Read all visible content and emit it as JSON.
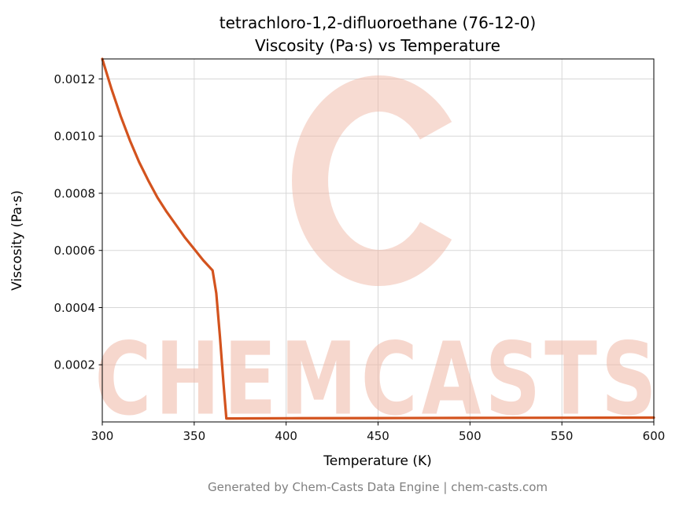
{
  "figure": {
    "background": "#ffffff",
    "footer": "Generated by Chem-Casts Data Engine | chem-casts.com"
  },
  "watermark": {
    "logo": "chemcasts-c-swirl-logo",
    "text": "CHEMCASTS",
    "color": "#f0b7a6"
  },
  "chart_data": {
    "type": "line",
    "title": "tetrachloro-1,2-difluoroethane (76-12-0) Viscosity (Pa·s) vs Temperature",
    "title_lines": [
      "tetrachloro-1,2-difluoroethane (76-12-0)",
      "Viscosity (Pa·s) vs Temperature"
    ],
    "xlabel": "Temperature (K)",
    "ylabel": "Viscosity (Pa·s)",
    "xlim": [
      300,
      600
    ],
    "ylim": [
      0,
      0.00127
    ],
    "xticks": [
      300,
      350,
      400,
      450,
      500,
      550,
      600
    ],
    "xtick_labels": [
      "300",
      "350",
      "400",
      "450",
      "500",
      "550",
      "600"
    ],
    "yticks": [
      0.0002,
      0.0004,
      0.0006,
      0.0008,
      0.001,
      0.0012
    ],
    "ytick_labels": [
      "0.0002",
      "0.0004",
      "0.0006",
      "0.0008",
      "0.0010",
      "0.0012"
    ],
    "grid": true,
    "legend": "none",
    "series": [
      {
        "name": "viscosity",
        "color": "#d3531e",
        "line_width": 3.2,
        "x": [
          300,
          305,
          310,
          315,
          320,
          325,
          330,
          335,
          340,
          345,
          350,
          355,
          360,
          362,
          364,
          366,
          367.5,
          380,
          400,
          450,
          500,
          550,
          600
        ],
        "y": [
          0.00127,
          0.001165,
          0.00107,
          0.000985,
          0.00091,
          0.000845,
          0.000785,
          0.000735,
          0.00069,
          0.000645,
          0.000605,
          0.000565,
          0.00053,
          0.00045,
          0.0003,
          0.00013,
          1.2e-05,
          1.25e-05,
          1.3e-05,
          1.35e-05,
          1.4e-05,
          1.45e-05,
          1.5e-05
        ]
      }
    ]
  }
}
